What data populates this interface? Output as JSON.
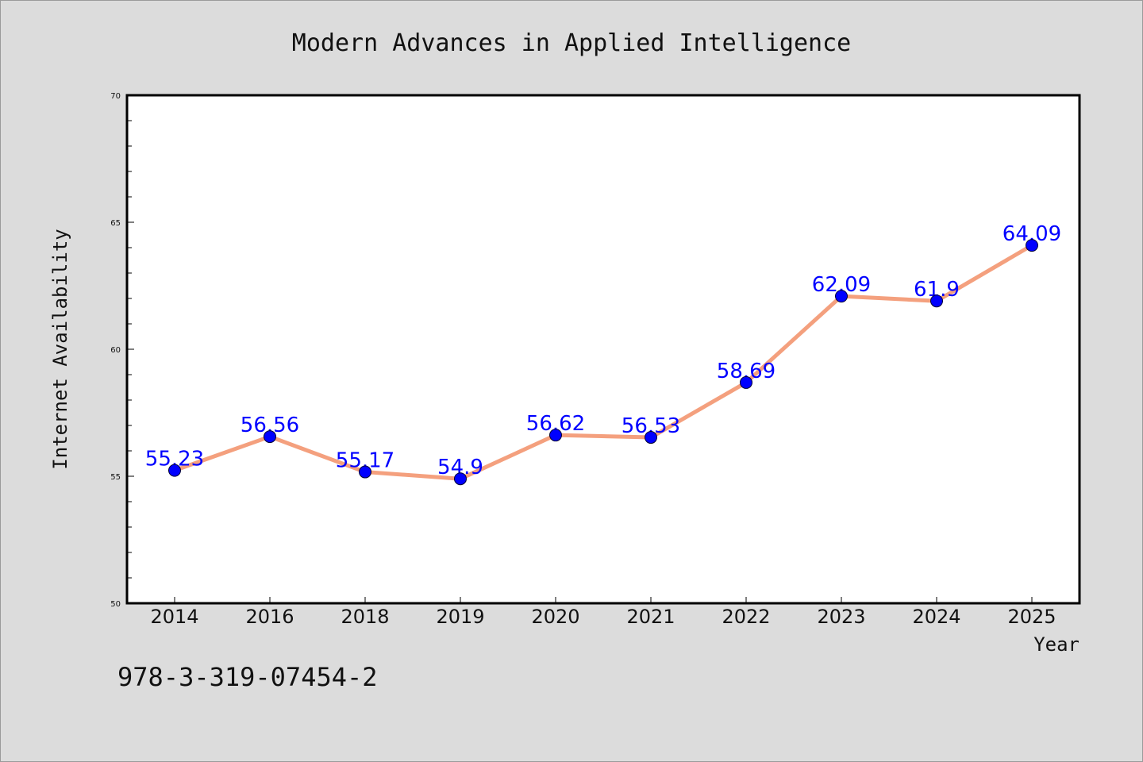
{
  "chart_data": {
    "type": "line",
    "title": "Modern Advances in Applied Intelligence",
    "xlabel": "Year",
    "ylabel": "Internet Availability",
    "categories": [
      "2014",
      "2016",
      "2018",
      "2019",
      "2020",
      "2021",
      "2022",
      "2023",
      "2024",
      "2025"
    ],
    "series": [
      {
        "values": [
          55.23,
          56.56,
          55.17,
          54.9,
          56.62,
          56.53,
          58.69,
          62.09,
          61.9,
          64.09
        ],
        "data_labels": [
          "55.23",
          "56.56",
          "55.17",
          "54.9",
          "56.62",
          "56.53",
          "58.69",
          "62.09",
          "61.9",
          "64.09"
        ]
      }
    ],
    "ylim": [
      50,
      70
    ],
    "yticks": [
      "50",
      "55",
      "60",
      "65",
      "70"
    ],
    "grid": false,
    "legend": "none",
    "colors": {
      "line": "#f4a07e",
      "marker": "#0000ff",
      "data_label": "#0000ff",
      "background": "#dcdcdc",
      "plot_background": "#ffffff"
    }
  },
  "footnote": "978-3-319-07454-2"
}
